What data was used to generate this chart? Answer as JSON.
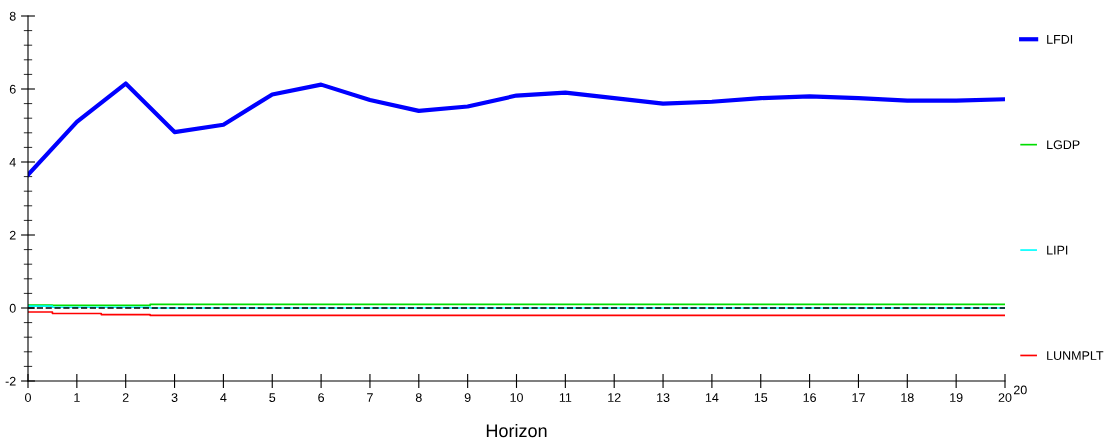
{
  "chart_data": {
    "type": "line",
    "xlabel": "Horizon",
    "x": [
      0,
      1,
      2,
      3,
      4,
      5,
      6,
      7,
      8,
      9,
      10,
      11,
      12,
      13,
      14,
      15,
      16,
      17,
      18,
      19,
      20
    ],
    "series": [
      {
        "name": "LFDI",
        "color": "#0000ff",
        "values": [
          3.65,
          5.1,
          6.15,
          4.82,
          5.02,
          5.85,
          6.12,
          5.7,
          5.4,
          5.52,
          5.82,
          5.9,
          5.75,
          5.6,
          5.65,
          5.75,
          5.8,
          5.75,
          5.68,
          5.68,
          5.72
        ]
      },
      {
        "name": "LGDP",
        "color": "#00dd00",
        "type": "step",
        "values": [
          0.08,
          0.07,
          0.07,
          0.1,
          0.1,
          0.1,
          0.1,
          0.1,
          0.1,
          0.1,
          0.1,
          0.1,
          0.1,
          0.1,
          0.1,
          0.1,
          0.1,
          0.1,
          0.1,
          0.1,
          0.1
        ]
      },
      {
        "name": "LIPI",
        "color": "#00ffff",
        "type": "step",
        "values": [
          0.05,
          0.02,
          0.02,
          0.0,
          0.0,
          0.0,
          0.0,
          0.0,
          0.0,
          0.0,
          0.0,
          0.0,
          0.0,
          0.0,
          0.0,
          0.0,
          0.0,
          0.0,
          0.0,
          0.0,
          0.0
        ]
      },
      {
        "name": "LUNMPLT",
        "color": "#ff0000",
        "type": "step",
        "values": [
          -0.11,
          -0.15,
          -0.18,
          -0.2,
          -0.2,
          -0.2,
          -0.2,
          -0.2,
          -0.2,
          -0.2,
          -0.2,
          -0.2,
          -0.2,
          -0.2,
          -0.2,
          -0.2,
          -0.2,
          -0.2,
          -0.2,
          -0.2,
          -0.2
        ]
      }
    ],
    "xlim": [
      0,
      20
    ],
    "xticks": [
      0,
      1,
      2,
      3,
      4,
      5,
      6,
      7,
      8,
      9,
      10,
      11,
      12,
      13,
      14,
      15,
      16,
      17,
      18,
      19,
      20
    ],
    "ylim": [
      -2,
      8
    ],
    "yticks": [
      -2,
      0,
      2,
      4,
      6,
      8
    ],
    "ref_lines": [
      {
        "axis": "y",
        "value": 0,
        "color": "#000000",
        "line_style": "dashed"
      }
    ],
    "annotations": [
      "20"
    ],
    "grid": false,
    "legend": "right",
    "marker": "none",
    "line_style": "solid"
  }
}
